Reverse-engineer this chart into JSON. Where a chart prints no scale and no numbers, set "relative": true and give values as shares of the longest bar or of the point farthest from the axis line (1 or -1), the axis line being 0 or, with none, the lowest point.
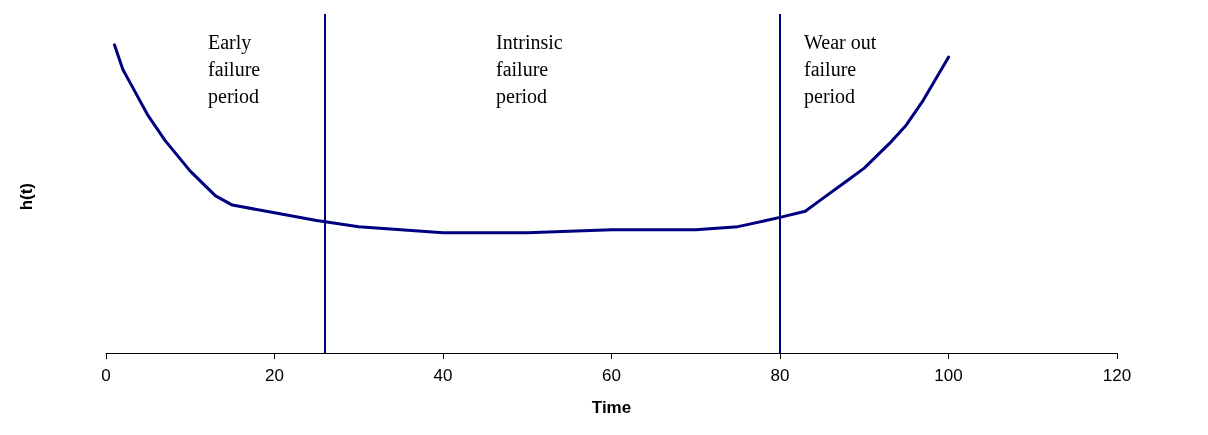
{
  "chart_data": {
    "type": "line",
    "relative": true,
    "xlabel": "Time",
    "ylabel": "h(t)",
    "xlim": [
      0,
      120
    ],
    "xticks": [
      0,
      20,
      40,
      60,
      80,
      100,
      120
    ],
    "grid": false,
    "marker": "none",
    "line_style": "solid",
    "series": [
      {
        "color": "#000080",
        "x": [
          1,
          2,
          3,
          5,
          7,
          10,
          13,
          15,
          20,
          25,
          30,
          35,
          40,
          45,
          50,
          60,
          65,
          70,
          75,
          80,
          83,
          85,
          88,
          90,
          93,
          95,
          97,
          100
        ],
        "values": [
          1.0,
          0.92,
          0.87,
          0.77,
          0.69,
          0.59,
          0.51,
          0.48,
          0.455,
          0.43,
          0.41,
          0.4,
          0.39,
          0.39,
          0.39,
          0.4,
          0.4,
          0.4,
          0.41,
          0.44,
          0.46,
          0.5,
          0.56,
          0.6,
          0.68,
          0.74,
          0.82,
          0.96
        ]
      }
    ],
    "ref_lines": [
      {
        "axis": "x",
        "value": 26,
        "color": "#000080",
        "line_style": "solid"
      },
      {
        "axis": "x",
        "value": 80,
        "color": "#000080",
        "line_style": "solid"
      }
    ],
    "annotations": [
      "Early\nfailure\nperiod",
      "Intrinsic\nfailure\nperiod",
      "Wear out\nfailure\nperiod"
    ]
  }
}
